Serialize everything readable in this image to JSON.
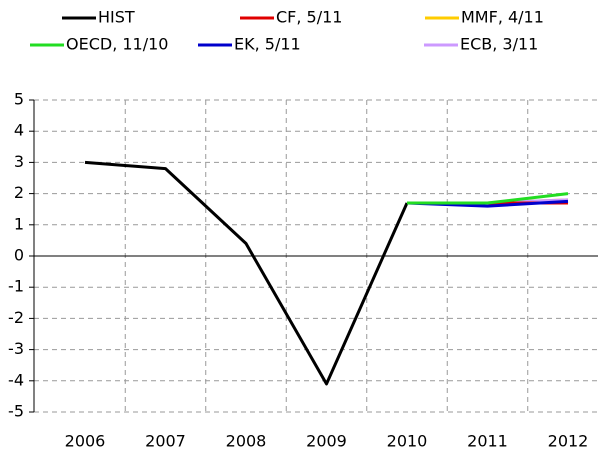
{
  "chart_data": {
    "type": "line",
    "categories": [
      "2006",
      "2007",
      "2008",
      "2009",
      "2010",
      "2011",
      "2012"
    ],
    "series": [
      {
        "name": "HIST",
        "color": "#000000",
        "values": [
          3.0,
          2.8,
          0.4,
          -4.1,
          1.7,
          null,
          null
        ]
      },
      {
        "name": "CF, 5/11",
        "color": "#e00000",
        "values": [
          null,
          null,
          null,
          null,
          1.7,
          1.7,
          1.7
        ]
      },
      {
        "name": "MMF, 4/11",
        "color": "#ffcc00",
        "values": [
          null,
          null,
          null,
          null,
          1.7,
          1.7,
          1.8
        ]
      },
      {
        "name": "OECD, 11/10",
        "color": "#22dd22",
        "values": [
          null,
          null,
          null,
          null,
          1.7,
          1.7,
          2.0
        ]
      },
      {
        "name": "EK, 5/11",
        "color": "#0000cc",
        "values": [
          null,
          null,
          null,
          null,
          1.7,
          1.6,
          1.75
        ]
      },
      {
        "name": "ECB, 3/11",
        "color": "#cc99ff",
        "values": [
          null,
          null,
          null,
          null,
          1.7,
          1.7,
          1.8
        ]
      }
    ],
    "ylim": [
      -5,
      5
    ],
    "yticks": [
      -5,
      -4,
      -3,
      -2,
      -1,
      0,
      1,
      2,
      3,
      4,
      5
    ],
    "grid": true
  }
}
